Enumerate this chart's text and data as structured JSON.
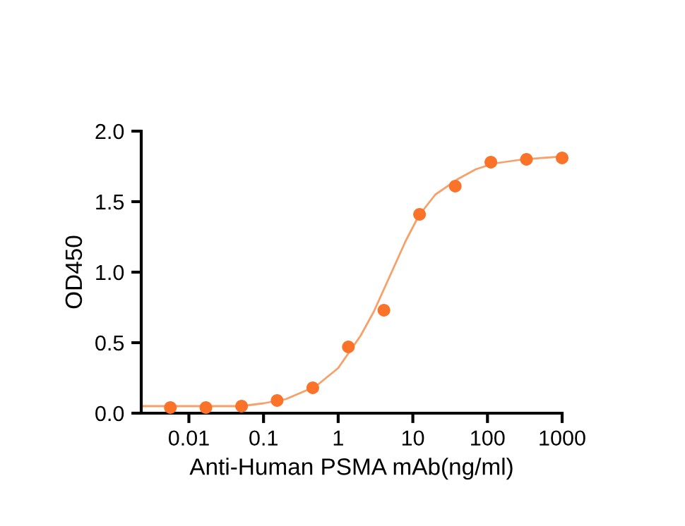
{
  "chart_data": {
    "type": "scatter",
    "xlabel": "Anti-Human PSMA mAb(ng/ml)",
    "ylabel": "OD450",
    "log": "x",
    "xlim": [
      0.0023,
      1000
    ],
    "xticks": [
      0.01,
      0.1,
      1,
      10,
      100,
      1000
    ],
    "ylim": [
      0,
      2
    ],
    "yticks": [
      {
        "value": 0,
        "label": "0.0"
      },
      {
        "value": 0.5,
        "label": "0.5"
      },
      {
        "value": 1,
        "label": "1.0"
      },
      {
        "value": 1.5,
        "label": "1.5"
      },
      {
        "value": 2,
        "label": "2.0"
      }
    ],
    "grid": false,
    "legend": false,
    "series": [
      {
        "type": "line",
        "color": "#f7a06a",
        "marker": "none",
        "line_style": "solid",
        "x": [
          0.0023,
          0.01,
          0.05,
          0.1,
          0.2,
          0.5,
          1,
          2,
          3,
          5,
          8,
          12,
          20,
          40,
          70,
          120,
          300,
          1000
        ],
        "values": [
          0.05,
          0.05,
          0.05,
          0.07,
          0.1,
          0.19,
          0.32,
          0.55,
          0.72,
          0.98,
          1.22,
          1.4,
          1.55,
          1.66,
          1.73,
          1.77,
          1.8,
          1.82
        ]
      },
      {
        "color": "#fa7328",
        "marker": "circle",
        "x": [
          0.00565,
          0.0169,
          0.0508,
          0.152,
          0.457,
          1.37,
          4.1,
          12.3,
          37,
          111,
          333,
          1000
        ],
        "values": [
          0.04,
          0.04,
          0.05,
          0.09,
          0.18,
          0.47,
          0.73,
          1.41,
          1.61,
          1.78,
          1.8,
          1.81
        ]
      }
    ]
  }
}
